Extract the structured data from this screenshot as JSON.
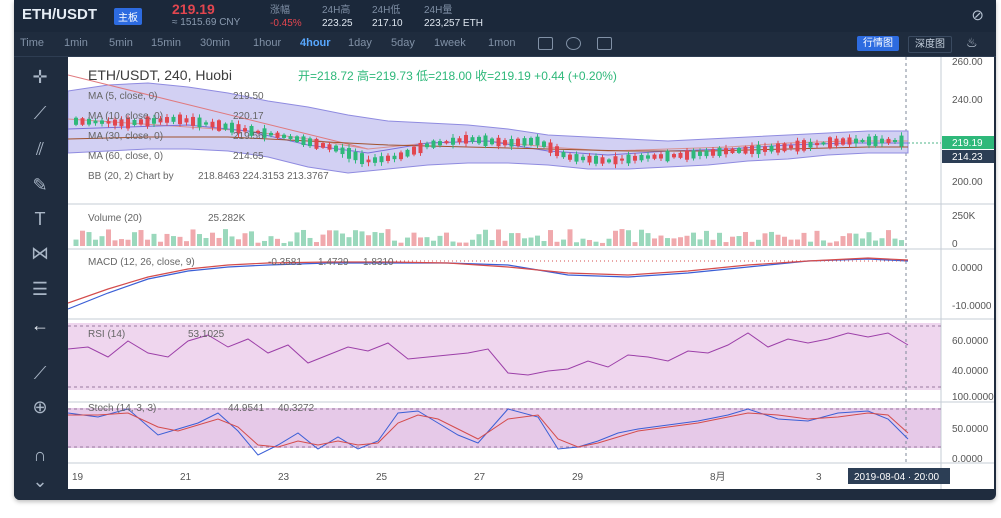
{
  "ticker": {
    "pair": "ETH/USDT",
    "badge": "主板",
    "price": "219.19",
    "cny": "≈ 1515.69 CNY",
    "stats": [
      {
        "label": "涨幅",
        "value": "-0.45%"
      },
      {
        "label": "24H高",
        "value": "223.25"
      },
      {
        "label": "24H低",
        "value": "217.10"
      },
      {
        "label": "24H量",
        "value": "223,257 ETH"
      }
    ]
  },
  "toolbar": {
    "timeframes": [
      "Time",
      "1min",
      "5min",
      "15min",
      "30min",
      "1hour",
      "4hour",
      "1day",
      "5day",
      "1week",
      "1mon"
    ],
    "active": "4hour",
    "standard_label": "行情图",
    "depth_label": "深度图"
  },
  "legend": {
    "symbol": "ETH/USDT, 240, Huobi",
    "ohlc": "开=218.72  高=219.73  低=218.00  收=219.19  +0.44 (+0.20%)",
    "ma5": "MA (5, close, 0)",
    "ma5_val": "219.50",
    "ma10": "MA (10, close, 0)",
    "ma10_val": "220.17",
    "ma30": "MA (30, close, 0)",
    "ma30_val": "219.56",
    "ma60": "MA (60, close, 0)",
    "ma60_val": "214.65",
    "bb": "BB (20, 2) Chart by",
    "bb_vals": "218.8463   224.3153   213.3767",
    "volume": "Volume (20)",
    "volume_val": "25.282K",
    "macd": "MACD (12, 26, close, 9)",
    "macd_vals": [
      "-0.3581",
      "1.4729",
      "1.8310"
    ],
    "rsi": "RSI (14)",
    "rsi_val": "53.1025",
    "stoch": "Stoch (14, 3, 3)",
    "stoch_vals": [
      "44.9541",
      "40.3272"
    ]
  },
  "axis": {
    "price_ticks": [
      "260.00",
      "240.00",
      "200.00"
    ],
    "price_badges": [
      "219.19",
      "214.23"
    ],
    "volume_ticks": [
      "250K",
      "0"
    ],
    "macd_ticks": [
      "0.0000",
      "-10.0000"
    ],
    "rsi_ticks": [
      "60.0000",
      "40.0000"
    ],
    "stoch_ticks": [
      "100.0000",
      "50.0000",
      "0.0000"
    ],
    "time_ticks": [
      "19",
      "21",
      "23",
      "25",
      "27",
      "29",
      "8月",
      "3"
    ],
    "crosshair_time": "2019-08-04 · 20:00"
  },
  "colors": {
    "up": "#2eb87a",
    "down": "#e2464f",
    "accent": "#2d6be0",
    "bb_fill": "#d2d0f3",
    "rsi_fill": "#efd6ee",
    "stoch_fill": "#e6c9e8"
  },
  "tools": [
    "crosshair-icon",
    "trendline-icon",
    "pitchfork-icon",
    "brush-icon",
    "text-icon",
    "pattern-icon",
    "fib-icon",
    "back-arrow-icon",
    "ruler-icon",
    "zoom-icon",
    "magnet-icon",
    "chevron-down-icon"
  ]
}
